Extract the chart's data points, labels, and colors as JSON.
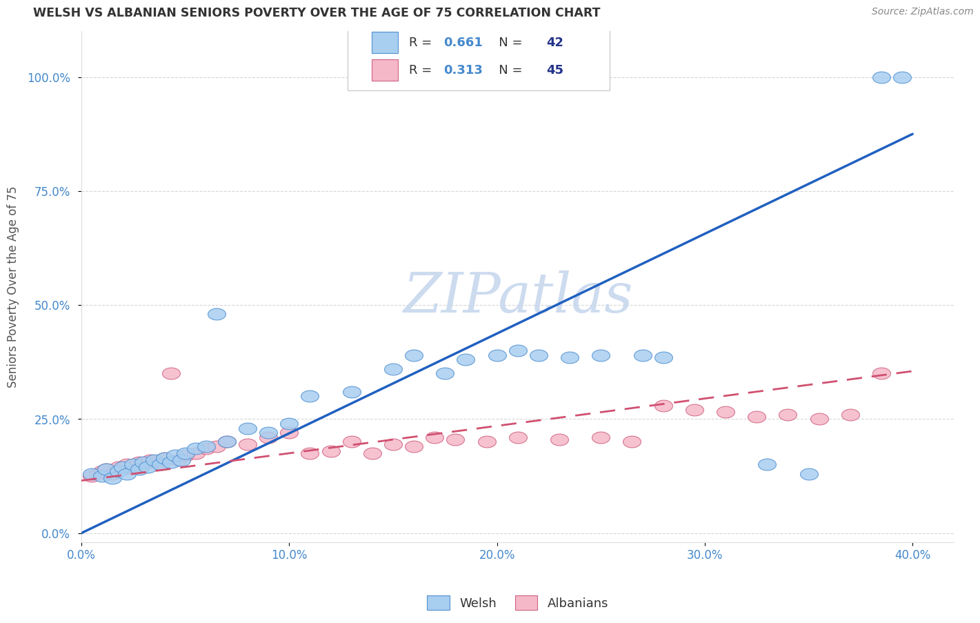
{
  "title": "WELSH VS ALBANIAN SENIORS POVERTY OVER THE AGE OF 75 CORRELATION CHART",
  "source": "Source: ZipAtlas.com",
  "ylabel": "Seniors Poverty Over the Age of 75",
  "xlim": [
    0.0,
    0.42
  ],
  "ylim": [
    -0.02,
    1.1
  ],
  "xticks": [
    0.0,
    0.1,
    0.2,
    0.3,
    0.4
  ],
  "xtick_labels": [
    "0.0%",
    "10.0%",
    "20.0%",
    "30.0%",
    "40.0%"
  ],
  "yticks": [
    0.0,
    0.25,
    0.5,
    0.75,
    1.0
  ],
  "ytick_labels": [
    "0.0%",
    "25.0%",
    "50.0%",
    "75.0%",
    "100.0%"
  ],
  "welsh_color": "#A8CEF0",
  "albanian_color": "#F5B8C8",
  "welsh_edge_color": "#5090D0",
  "albanian_edge_color": "#D06080",
  "welsh_line_color": "#2060C0",
  "albanian_line_color": "#D05070",
  "welsh_R": 0.661,
  "welsh_N": 42,
  "albanian_R": 0.313,
  "albanian_N": 45,
  "welsh_line_x0": 0.0,
  "welsh_line_y0": 0.0,
  "welsh_line_x1": 0.4,
  "welsh_line_y1": 0.875,
  "albanian_line_x0": 0.0,
  "albanian_line_y0": 0.115,
  "albanian_line_x1": 0.4,
  "albanian_line_y1": 0.355,
  "welsh_x": [
    0.005,
    0.01,
    0.012,
    0.015,
    0.018,
    0.02,
    0.022,
    0.025,
    0.028,
    0.03,
    0.032,
    0.035,
    0.038,
    0.04,
    0.043,
    0.045,
    0.048,
    0.05,
    0.055,
    0.06,
    0.065,
    0.07,
    0.08,
    0.09,
    0.1,
    0.11,
    0.13,
    0.15,
    0.16,
    0.175,
    0.185,
    0.2,
    0.21,
    0.22,
    0.235,
    0.25,
    0.27,
    0.28,
    0.33,
    0.35,
    0.385,
    0.395
  ],
  "welsh_y": [
    0.13,
    0.125,
    0.14,
    0.12,
    0.135,
    0.145,
    0.13,
    0.15,
    0.14,
    0.155,
    0.145,
    0.16,
    0.15,
    0.165,
    0.155,
    0.17,
    0.16,
    0.175,
    0.185,
    0.19,
    0.48,
    0.2,
    0.23,
    0.22,
    0.24,
    0.3,
    0.31,
    0.36,
    0.39,
    0.35,
    0.38,
    0.39,
    0.4,
    0.39,
    0.385,
    0.39,
    0.39,
    0.385,
    0.15,
    0.13,
    1.0,
    1.0
  ],
  "albanian_x": [
    0.005,
    0.008,
    0.01,
    0.012,
    0.015,
    0.018,
    0.02,
    0.022,
    0.025,
    0.028,
    0.03,
    0.033,
    0.036,
    0.04,
    0.043,
    0.046,
    0.05,
    0.055,
    0.06,
    0.065,
    0.07,
    0.08,
    0.09,
    0.1,
    0.11,
    0.12,
    0.13,
    0.14,
    0.15,
    0.16,
    0.17,
    0.18,
    0.195,
    0.21,
    0.23,
    0.25,
    0.265,
    0.28,
    0.295,
    0.31,
    0.325,
    0.34,
    0.355,
    0.37,
    0.385
  ],
  "albanian_y": [
    0.125,
    0.13,
    0.135,
    0.14,
    0.13,
    0.145,
    0.14,
    0.15,
    0.145,
    0.155,
    0.15,
    0.16,
    0.155,
    0.165,
    0.35,
    0.16,
    0.17,
    0.175,
    0.185,
    0.19,
    0.2,
    0.195,
    0.21,
    0.22,
    0.175,
    0.18,
    0.2,
    0.175,
    0.195,
    0.19,
    0.21,
    0.205,
    0.2,
    0.21,
    0.205,
    0.21,
    0.2,
    0.28,
    0.27,
    0.265,
    0.255,
    0.26,
    0.25,
    0.26,
    0.35
  ],
  "watermark_text": "ZIPatlas",
  "watermark_color": "#C8D8EE",
  "background_color": "#FFFFFF",
  "grid_color": "#CCCCCC",
  "title_color": "#333333",
  "axis_tick_color": "#4488CC",
  "ylabel_color": "#555555",
  "source_color": "#888888",
  "legend_box_color": "#CCCCCC",
  "legend_r_color": "#4488CC",
  "legend_n_color": "#223388"
}
